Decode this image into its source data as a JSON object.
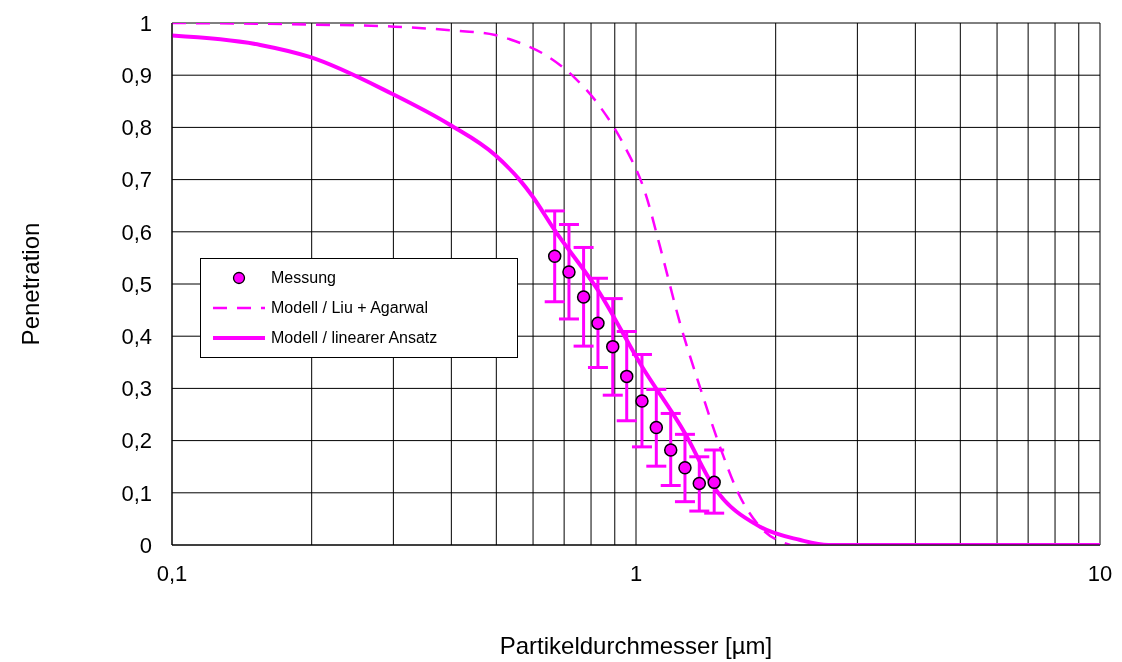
{
  "chart_data": {
    "type": "line",
    "xlabel": "Partikeldurchmesser [µm]",
    "ylabel": "Penetration",
    "log": "x",
    "grid": true,
    "legend": "left",
    "xlim": [
      0.1,
      10
    ],
    "xticks": [
      {
        "value": 0.1,
        "label": "0,1"
      },
      {
        "value": 0.2,
        "label": null
      },
      {
        "value": 0.3,
        "label": null
      },
      {
        "value": 0.4,
        "label": null
      },
      {
        "value": 0.5,
        "label": null
      },
      {
        "value": 0.6,
        "label": null
      },
      {
        "value": 0.7,
        "label": null
      },
      {
        "value": 0.8,
        "label": null
      },
      {
        "value": 0.9,
        "label": null
      },
      1,
      {
        "value": 2,
        "label": null
      },
      {
        "value": 3,
        "label": null
      },
      {
        "value": 4,
        "label": null
      },
      {
        "value": 5,
        "label": null
      },
      {
        "value": 6,
        "label": null
      },
      {
        "value": 7,
        "label": null
      },
      {
        "value": 8,
        "label": null
      },
      {
        "value": 9,
        "label": null
      },
      10
    ],
    "ylim": [
      0,
      1
    ],
    "yticks": [
      0,
      {
        "value": 0.1,
        "label": "0,1"
      },
      {
        "value": 0.2,
        "label": "0,2"
      },
      {
        "value": 0.3,
        "label": "0,3"
      },
      {
        "value": 0.4,
        "label": "0,4"
      },
      {
        "value": 0.5,
        "label": "0,5"
      },
      {
        "value": 0.6,
        "label": "0,6"
      },
      {
        "value": 0.7,
        "label": "0,7"
      },
      {
        "value": 0.8,
        "label": "0,8"
      },
      {
        "value": 0.9,
        "label": "0,9"
      },
      1
    ],
    "series": [
      {
        "name": "Messung",
        "type": "scatter",
        "marker": "circle",
        "color": "#ff00ff",
        "x": [
          0.668,
          0.717,
          0.771,
          0.828,
          0.891,
          0.955,
          1.03,
          1.106,
          1.188,
          1.275,
          1.369,
          1.474
        ],
        "values": [
          0.553,
          0.523,
          0.475,
          0.425,
          0.38,
          0.323,
          0.276,
          0.225,
          0.182,
          0.148,
          0.118,
          0.12
        ],
        "errors": [
          [
            0.466,
            0.64
          ],
          [
            0.433,
            0.614
          ],
          [
            0.381,
            0.57
          ],
          [
            0.34,
            0.511
          ],
          [
            0.287,
            0.472
          ],
          [
            0.238,
            0.409
          ],
          [
            0.188,
            0.365
          ],
          [
            0.151,
            0.298
          ],
          [
            0.114,
            0.252
          ],
          [
            0.083,
            0.212
          ],
          [
            0.065,
            0.169
          ],
          [
            0.061,
            0.182
          ]
        ]
      },
      {
        "name": "Modell / Liu + Agarwal",
        "type": "line",
        "line_style": "dashed",
        "marker": "none",
        "color": "#ff00ff",
        "x": [
          0.1,
          0.2,
          0.302,
          0.4,
          0.497,
          0.55,
          0.64,
          0.738,
          0.836,
          0.946,
          1.045,
          1.127,
          1.244,
          1.373,
          1.517,
          1.675,
          1.85,
          2.15
        ],
        "values": [
          1.0,
          0.997,
          0.993,
          0.986,
          0.977,
          0.965,
          0.938,
          0.895,
          0.84,
          0.763,
          0.677,
          0.571,
          0.425,
          0.303,
          0.188,
          0.093,
          0.035,
          0
        ]
      },
      {
        "name": "Modell / linearer Ansatz",
        "type": "line",
        "line_style": "solid",
        "marker": "none",
        "color": "#ff00ff",
        "x": [
          0.1,
          0.155,
          0.198,
          0.297,
          0.397,
          0.497,
          0.562,
          0.596,
          0.668,
          0.828,
          1.03,
          1.275,
          1.47,
          1.85,
          2.25,
          2.6,
          10
        ],
        "values": [
          0.976,
          0.958,
          0.935,
          0.865,
          0.805,
          0.747,
          0.699,
          0.67,
          0.603,
          0.488,
          0.342,
          0.214,
          0.112,
          0.035,
          0.01,
          0,
          0
        ]
      }
    ]
  }
}
